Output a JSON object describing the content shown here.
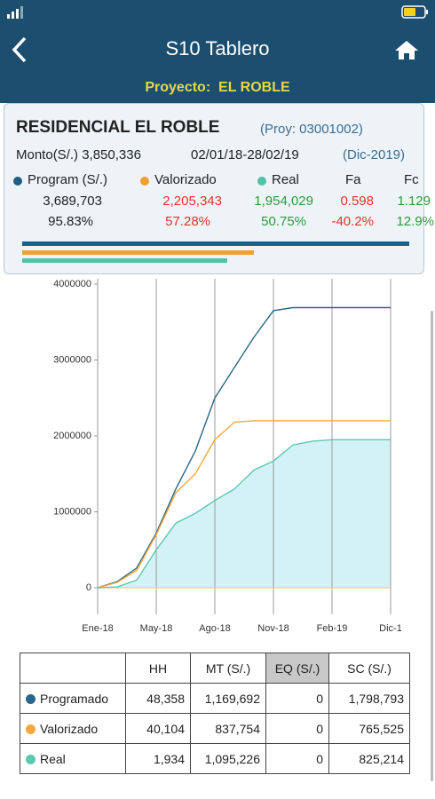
{
  "header": {
    "title": "S10 Tablero",
    "project_label": "Proyecto:",
    "project": "EL ROBLE"
  },
  "summary": {
    "name": "RESIDENCIAL EL ROBLE",
    "code": "(Proy: 03001002)",
    "amount_label": "Monto(S/.)",
    "amount": "3,850,336",
    "period": "02/01/18-28/02/19",
    "end": "(Dic-2019)",
    "columns": [
      {
        "label": "Program (S/.)",
        "value": "3,689,703",
        "pct": "95.83%"
      },
      {
        "label": "Valorizado",
        "value": "2,205,343",
        "pct": "57.28%"
      },
      {
        "label": "Real",
        "value": "1,954,029",
        "pct": "50.75%"
      },
      {
        "label": "Fa",
        "value": "0.598",
        "pct": "-40.2%"
      },
      {
        "label": "Fc",
        "value": "1.129",
        "pct": "12.9%"
      }
    ]
  },
  "chart_data": {
    "type": "line",
    "xlim": [
      0,
      15
    ],
    "xticks": [
      {
        "value": 0,
        "label": "Ene-18"
      },
      {
        "value": 3,
        "label": "May-18"
      },
      {
        "value": 6,
        "label": "Ago-18"
      },
      {
        "value": 9,
        "label": "Nov-18"
      },
      {
        "value": 12,
        "label": "Feb-19"
      },
      {
        "value": 15,
        "label": "Dic-1"
      }
    ],
    "ylim": [
      0,
      4000000
    ],
    "yticks": [
      0,
      1000000,
      2000000,
      3000000,
      4000000
    ],
    "series": [
      {
        "name": "Programado",
        "color": "#2a6689",
        "values": [
          0,
          80000,
          260000,
          720000,
          1300000,
          1800000,
          2500000,
          2900000,
          3300000,
          3650000,
          3690000,
          3690000,
          3690000,
          3690000,
          3690000,
          3690000
        ]
      },
      {
        "name": "Valorizado",
        "color": "#f5a73a",
        "values": [
          0,
          70000,
          230000,
          700000,
          1250000,
          1500000,
          1950000,
          2180000,
          2200000,
          2200000,
          2200000,
          2200000,
          2200000,
          2200000,
          2200000,
          2200000
        ]
      },
      {
        "name": "Real",
        "color": "#5cc8b0",
        "fill": "#d3f2f6",
        "values": [
          0,
          10000,
          100000,
          500000,
          850000,
          980000,
          1150000,
          1300000,
          1550000,
          1670000,
          1880000,
          1930000,
          1950000,
          1950000,
          1950000,
          1950000
        ]
      }
    ]
  },
  "table": {
    "header": [
      "HH",
      "MT (S/.)",
      "EQ (S/.)",
      "SC (S/.)"
    ],
    "rows": [
      [
        "Programado",
        "48,358",
        "1,169,692",
        "0",
        "1,798,793"
      ],
      [
        "Valorizado",
        "40,104",
        "837,754",
        "0",
        "765,525"
      ],
      [
        "Real",
        "1,934",
        "1,095,226",
        "0",
        "825,214"
      ]
    ]
  }
}
